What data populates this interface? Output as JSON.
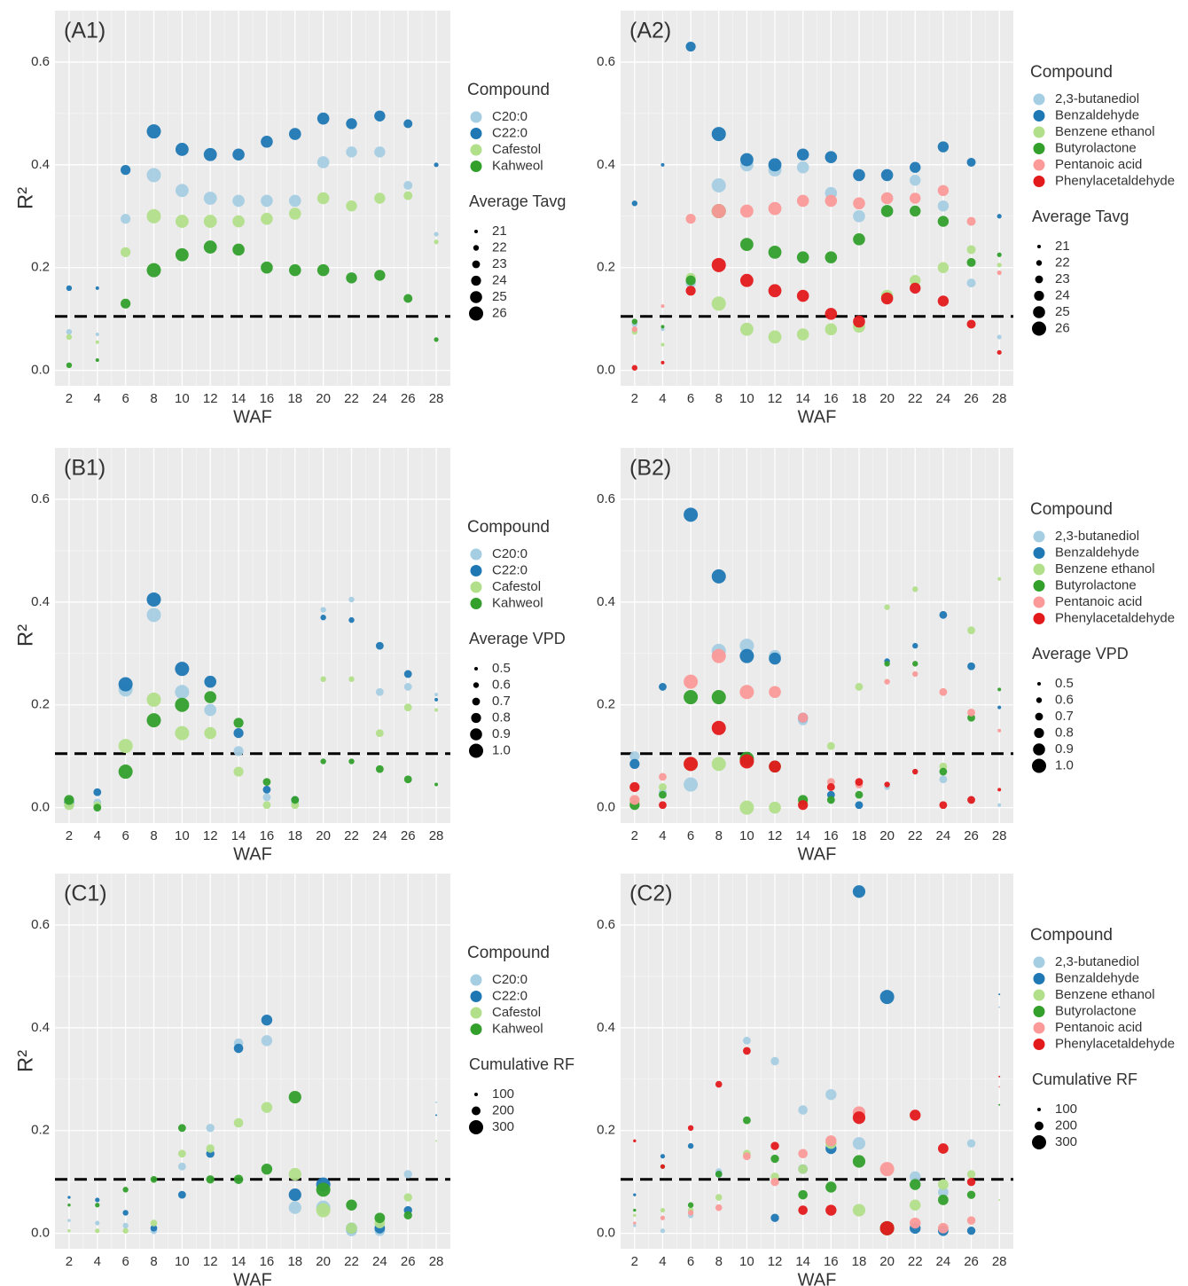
{
  "chart_data": [
    {
      "type": "scatter",
      "label": "(A1)",
      "ylabel": "R²",
      "xlabel": "WAF",
      "x": [
        2,
        4,
        6,
        8,
        10,
        12,
        14,
        16,
        18,
        20,
        22,
        24,
        26,
        28
      ],
      "xlim": [
        1,
        29
      ],
      "xticks": [
        2,
        4,
        6,
        8,
        10,
        12,
        14,
        16,
        18,
        20,
        22,
        24,
        26,
        28
      ],
      "ylim": [
        -0.03,
        0.7
      ],
      "yticks": [
        {
          "value": 0,
          "label": "0.0"
        },
        0.2,
        0.4,
        0.6
      ],
      "grid": true,
      "hline": 0.105,
      "legend_title": "Compound",
      "size_title": "Average Tavg",
      "size_legend": [
        21,
        22,
        23,
        24,
        25,
        26
      ],
      "sizes": [
        22,
        21,
        24,
        26,
        25.5,
        25.5,
        25,
        25,
        25,
        25,
        24.5,
        24.5,
        23.5,
        21.5
      ],
      "series": [
        {
          "name": "C20:0",
          "color": "#a6cee3",
          "values": [
            0.075,
            0.07,
            0.295,
            0.38,
            0.35,
            0.335,
            0.33,
            0.33,
            0.33,
            0.405,
            0.425,
            0.425,
            0.36,
            0.265
          ]
        },
        {
          "name": "C22:0",
          "color": "#1f78b4",
          "values": [
            0.16,
            0.16,
            0.39,
            0.465,
            0.43,
            0.42,
            0.42,
            0.445,
            0.46,
            0.49,
            0.48,
            0.495,
            0.48,
            0.4
          ]
        },
        {
          "name": "Cafestol",
          "color": "#b2df8a",
          "values": [
            0.065,
            0.055,
            0.23,
            0.3,
            0.29,
            0.29,
            0.29,
            0.295,
            0.305,
            0.335,
            0.32,
            0.335,
            0.34,
            0.25
          ]
        },
        {
          "name": "Kahweol",
          "color": "#33a02c",
          "values": [
            0.01,
            0.02,
            0.13,
            0.195,
            0.225,
            0.24,
            0.235,
            0.2,
            0.195,
            0.195,
            0.18,
            0.185,
            0.14,
            0.06
          ]
        }
      ]
    },
    {
      "type": "scatter",
      "label": "(A2)",
      "xlabel": "WAF",
      "x": [
        2,
        4,
        6,
        8,
        10,
        12,
        14,
        16,
        18,
        20,
        22,
        24,
        26,
        28
      ],
      "xlim": [
        1,
        29
      ],
      "xticks": [
        2,
        4,
        6,
        8,
        10,
        12,
        14,
        16,
        18,
        20,
        22,
        24,
        26,
        28
      ],
      "ylim": [
        -0.03,
        0.7
      ],
      "yticks": [
        {
          "value": 0,
          "label": "0.0"
        },
        0.2,
        0.4,
        0.6
      ],
      "grid": true,
      "hline": 0.105,
      "legend_title": "Compound",
      "size_title": "Average Tavg",
      "size_legend": [
        21,
        22,
        23,
        24,
        25,
        26
      ],
      "sizes": [
        22,
        21,
        24,
        26,
        25.5,
        25.5,
        25,
        25,
        25,
        25,
        24.5,
        24.5,
        23.5,
        21.5
      ],
      "series": [
        {
          "name": "2,3-butanediol",
          "color": "#a6cee3",
          "values": [
            0.09,
            0.08,
            0.17,
            0.36,
            0.4,
            0.39,
            0.395,
            0.345,
            0.3,
            0.31,
            0.37,
            0.32,
            0.17,
            0.065
          ]
        },
        {
          "name": "Benzaldehyde",
          "color": "#1f78b4",
          "values": [
            0.325,
            0.4,
            0.63,
            0.46,
            0.41,
            0.4,
            0.42,
            0.415,
            0.38,
            0.38,
            0.395,
            0.435,
            0.405,
            0.3
          ]
        },
        {
          "name": "Benzene ethanol",
          "color": "#b2df8a",
          "values": [
            0.075,
            0.05,
            0.18,
            0.13,
            0.08,
            0.065,
            0.07,
            0.08,
            0.085,
            0.145,
            0.175,
            0.2,
            0.235,
            0.205
          ]
        },
        {
          "name": "Butyrolactone",
          "color": "#33a02c",
          "values": [
            0.095,
            0.085,
            0.175,
            0.31,
            0.245,
            0.23,
            0.22,
            0.22,
            0.255,
            0.31,
            0.31,
            0.29,
            0.21,
            0.225
          ]
        },
        {
          "name": "Pentanoic acid",
          "color": "#fb9a99",
          "values": [
            0.08,
            0.125,
            0.295,
            0.31,
            0.31,
            0.315,
            0.33,
            0.33,
            0.325,
            0.335,
            0.335,
            0.35,
            0.29,
            0.19
          ]
        },
        {
          "name": "Phenylacetaldehyde",
          "color": "#e31a1c",
          "values": [
            0.005,
            0.015,
            0.155,
            0.205,
            0.175,
            0.155,
            0.145,
            0.11,
            0.095,
            0.14,
            0.16,
            0.135,
            0.09,
            0.035
          ]
        }
      ]
    },
    {
      "type": "scatter",
      "label": "(B1)",
      "ylabel": "R²",
      "xlabel": "WAF",
      "x": [
        2,
        4,
        6,
        8,
        10,
        12,
        14,
        16,
        18,
        20,
        22,
        24,
        26,
        28
      ],
      "xlim": [
        1,
        29
      ],
      "xticks": [
        2,
        4,
        6,
        8,
        10,
        12,
        14,
        16,
        18,
        20,
        22,
        24,
        26,
        28
      ],
      "ylim": [
        -0.03,
        0.7
      ],
      "yticks": [
        {
          "value": 0,
          "label": "0.0"
        },
        0.2,
        0.4,
        0.6
      ],
      "grid": true,
      "hline": 0.105,
      "legend_title": "Compound",
      "size_title": "Average VPD",
      "size_legend": [
        0.5,
        0.6,
        0.7,
        0.8,
        0.9,
        {
          "value": 1,
          "label": "1.0"
        }
      ],
      "sizes": [
        0.8,
        0.7,
        1.0,
        1.0,
        1.0,
        0.9,
        0.8,
        0.7,
        0.7,
        0.6,
        0.6,
        0.7,
        0.7,
        0.5
      ],
      "series": [
        {
          "name": "C20:0",
          "color": "#a6cee3",
          "values": [
            0.005,
            0.01,
            0.23,
            0.375,
            0.225,
            0.19,
            0.11,
            0.02,
            0.01,
            0.385,
            0.405,
            0.225,
            0.235,
            0.22
          ]
        },
        {
          "name": "C22:0",
          "color": "#1f78b4",
          "values": [
            0.01,
            0.03,
            0.24,
            0.405,
            0.27,
            0.245,
            0.145,
            0.035,
            0.015,
            0.37,
            0.365,
            0.315,
            0.26,
            0.21
          ]
        },
        {
          "name": "Cafestol",
          "color": "#b2df8a",
          "values": [
            0.005,
            0.005,
            0.12,
            0.21,
            0.145,
            0.145,
            0.07,
            0.005,
            0.005,
            0.25,
            0.25,
            0.145,
            0.195,
            0.19
          ]
        },
        {
          "name": "Kahweol",
          "color": "#33a02c",
          "values": [
            0.015,
            0.0,
            0.07,
            0.17,
            0.2,
            0.215,
            0.165,
            0.05,
            0.015,
            0.09,
            0.09,
            0.075,
            0.055,
            0.045
          ]
        }
      ]
    },
    {
      "type": "scatter",
      "label": "(B2)",
      "xlabel": "WAF",
      "x": [
        2,
        4,
        6,
        8,
        10,
        12,
        14,
        16,
        18,
        20,
        22,
        24,
        26,
        28
      ],
      "xlim": [
        1,
        29
      ],
      "xticks": [
        2,
        4,
        6,
        8,
        10,
        12,
        14,
        16,
        18,
        20,
        22,
        24,
        26,
        28
      ],
      "ylim": [
        -0.03,
        0.7
      ],
      "yticks": [
        {
          "value": 0,
          "label": "0.0"
        },
        0.2,
        0.4,
        0.6
      ],
      "grid": true,
      "hline": 0.105,
      "legend_title": "Compound",
      "size_title": "Average VPD",
      "size_legend": [
        0.5,
        0.6,
        0.7,
        0.8,
        0.9,
        {
          "value": 1,
          "label": "1.0"
        }
      ],
      "sizes": [
        0.8,
        0.7,
        1.0,
        1.0,
        1.0,
        0.9,
        0.8,
        0.7,
        0.7,
        0.6,
        0.6,
        0.7,
        0.7,
        0.5
      ],
      "series": [
        {
          "name": "2,3-butanediol",
          "color": "#a6cee3",
          "values": [
            0.1,
            0.03,
            0.045,
            0.305,
            0.315,
            0.295,
            0.17,
            0.015,
            0.005,
            0.04,
            0.07,
            0.055,
            0.015,
            0.005
          ]
        },
        {
          "name": "Benzaldehyde",
          "color": "#1f78b4",
          "values": [
            0.085,
            0.235,
            0.57,
            0.45,
            0.295,
            0.29,
            0.175,
            0.025,
            0.005,
            0.285,
            0.315,
            0.375,
            0.275,
            0.195
          ]
        },
        {
          "name": "Benzene ethanol",
          "color": "#b2df8a",
          "values": [
            0.01,
            0.04,
            0.085,
            0.085,
            0.0,
            0.0,
            0.01,
            0.12,
            0.235,
            0.39,
            0.425,
            0.08,
            0.345,
            0.445
          ]
        },
        {
          "name": "Butyrolactone",
          "color": "#33a02c",
          "values": [
            0.005,
            0.025,
            0.215,
            0.215,
            0.095,
            0.08,
            0.015,
            0.015,
            0.025,
            0.28,
            0.28,
            0.07,
            0.175,
            0.23
          ]
        },
        {
          "name": "Pentanoic acid",
          "color": "#fb9a99",
          "values": [
            0.015,
            0.06,
            0.245,
            0.295,
            0.225,
            0.225,
            0.175,
            0.05,
            0.045,
            0.245,
            0.26,
            0.225,
            0.185,
            0.15
          ]
        },
        {
          "name": "Phenylacetaldehyde",
          "color": "#e31a1c",
          "values": [
            0.04,
            0.005,
            0.085,
            0.155,
            0.09,
            0.08,
            0.005,
            0.04,
            0.05,
            0.045,
            0.07,
            0.005,
            0.015,
            0.035
          ]
        }
      ]
    },
    {
      "type": "scatter",
      "label": "(C1)",
      "ylabel": "R²",
      "xlabel": "WAF",
      "x": [
        2,
        4,
        6,
        8,
        10,
        12,
        14,
        16,
        18,
        20,
        22,
        24,
        26,
        28
      ],
      "xlim": [
        1,
        29
      ],
      "xticks": [
        2,
        4,
        6,
        8,
        10,
        12,
        14,
        16,
        18,
        20,
        22,
        24,
        26,
        28
      ],
      "ylim": [
        -0.03,
        0.7
      ],
      "yticks": [
        {
          "value": 0,
          "label": "0.0"
        },
        0.2,
        0.4,
        0.6
      ],
      "grid": true,
      "hline": 0.105,
      "legend_title": "Compound",
      "size_title": "Cumulative RF",
      "size_legend": [
        100,
        200,
        300
      ],
      "sizes": [
        90,
        120,
        140,
        160,
        180,
        190,
        210,
        240,
        270,
        300,
        240,
        230,
        190,
        60
      ],
      "series": [
        {
          "name": "C20:0",
          "color": "#a6cee3",
          "values": [
            0.025,
            0.02,
            0.015,
            0.005,
            0.13,
            0.205,
            0.37,
            0.375,
            0.05,
            0.05,
            0.005,
            0.005,
            0.115,
            0.255
          ]
        },
        {
          "name": "C22:0",
          "color": "#1f78b4",
          "values": [
            0.07,
            0.065,
            0.04,
            0.01,
            0.075,
            0.155,
            0.36,
            0.415,
            0.075,
            0.095,
            0.01,
            0.01,
            0.045,
            0.23
          ]
        },
        {
          "name": "Cafestol",
          "color": "#b2df8a",
          "values": [
            0.005,
            0.005,
            0.005,
            0.02,
            0.155,
            0.165,
            0.215,
            0.245,
            0.115,
            0.045,
            0.01,
            0.02,
            0.07,
            0.18
          ]
        },
        {
          "name": "Kahweol",
          "color": "#33a02c",
          "values": [
            0.055,
            0.055,
            0.085,
            0.105,
            0.205,
            0.105,
            0.105,
            0.125,
            0.265,
            0.085,
            0.055,
            0.03,
            0.035,
            null
          ]
        }
      ]
    },
    {
      "type": "scatter",
      "label": "(C2)",
      "xlabel": "WAF",
      "x": [
        2,
        4,
        6,
        8,
        10,
        12,
        14,
        16,
        18,
        20,
        22,
        24,
        26,
        28
      ],
      "xlim": [
        1,
        29
      ],
      "xticks": [
        2,
        4,
        6,
        8,
        10,
        12,
        14,
        16,
        18,
        20,
        22,
        24,
        26,
        28
      ],
      "ylim": [
        -0.03,
        0.7
      ],
      "yticks": [
        {
          "value": 0,
          "label": "0.0"
        },
        0.2,
        0.4,
        0.6
      ],
      "grid": true,
      "hline": 0.105,
      "legend_title": "Compound",
      "size_title": "Cumulative RF",
      "size_legend": [
        100,
        200,
        300
      ],
      "sizes": [
        90,
        120,
        140,
        160,
        180,
        190,
        210,
        240,
        270,
        300,
        240,
        230,
        190,
        60
      ],
      "series": [
        {
          "name": "2,3-butanediol",
          "color": "#a6cee3",
          "values": [
            0.015,
            0.005,
            0.035,
            0.12,
            0.375,
            0.335,
            0.24,
            0.27,
            0.175,
            0.01,
            0.11,
            0.08,
            0.175,
            0.44
          ]
        },
        {
          "name": "Benzaldehyde",
          "color": "#1f78b4",
          "values": [
            0.075,
            0.15,
            0.17,
            0.115,
            null,
            0.03,
            0.125,
            0.165,
            0.665,
            0.46,
            0.01,
            0.005,
            0.005,
            0.465
          ]
        },
        {
          "name": "Benzene ethanol",
          "color": "#b2df8a",
          "values": [
            0.035,
            0.045,
            0.045,
            0.07,
            0.155,
            0.11,
            0.125,
            0.175,
            0.045,
            0.01,
            0.055,
            0.095,
            0.115,
            0.065
          ]
        },
        {
          "name": "Butyrolactone",
          "color": "#33a02c",
          "values": [
            0.045,
            0.13,
            0.055,
            0.115,
            0.22,
            0.145,
            0.075,
            0.09,
            0.14,
            0.01,
            0.095,
            0.065,
            0.075,
            0.25
          ]
        },
        {
          "name": "Pentanoic acid",
          "color": "#fb9a99",
          "values": [
            0.02,
            0.03,
            0.04,
            0.05,
            0.15,
            0.1,
            0.155,
            0.18,
            0.235,
            0.125,
            0.02,
            0.01,
            0.025,
            0.285
          ]
        },
        {
          "name": "Phenylacetaldehyde",
          "color": "#e31a1c",
          "values": [
            0.18,
            0.13,
            0.205,
            0.29,
            0.355,
            0.17,
            0.045,
            0.045,
            0.225,
            0.01,
            0.23,
            0.165,
            0.1,
            0.305
          ]
        }
      ]
    }
  ]
}
